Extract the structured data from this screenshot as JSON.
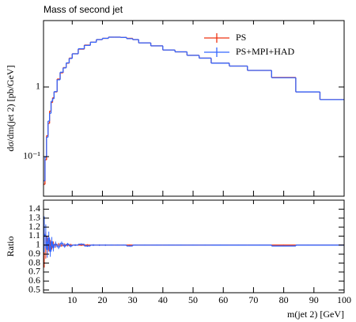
{
  "chart_data": [
    {
      "type": "histogram",
      "title": "Mass of second jet",
      "ylabel": "dσ/dm(jet 2) [pb/GeV]",
      "log_y": true,
      "legend": "upper right",
      "xlim": [
        0.5,
        100
      ],
      "xticks": [
        10,
        20,
        30,
        40,
        50,
        60,
        70,
        80,
        90,
        100
      ],
      "ylim": [
        0.027,
        9
      ],
      "yticks": [
        {
          "value": 0.1,
          "label": "10⁻¹"
        },
        1
      ],
      "bins": [
        0.5,
        1,
        1.5,
        2,
        2.5,
        3,
        3.5,
        4,
        5,
        6,
        7,
        8,
        9,
        10,
        12,
        14,
        16,
        18,
        20,
        22,
        24,
        26,
        28,
        30,
        32,
        36,
        40,
        44,
        48,
        52,
        56,
        62,
        68,
        76,
        84,
        92,
        100
      ],
      "series": [
        {
          "name": "PS",
          "color": "#ee3311",
          "values": [
            0.04,
            0.09,
            0.2,
            0.3,
            0.45,
            0.6,
            0.7,
            0.85,
            1.3,
            1.6,
            1.9,
            2.2,
            2.6,
            3.0,
            3.5,
            4.0,
            4.4,
            4.8,
            5.0,
            5.2,
            5.2,
            5.15,
            5.0,
            4.8,
            4.3,
            3.9,
            3.4,
            3.2,
            2.85,
            2.6,
            2.2,
            2.0,
            1.73,
            1.37,
            0.85,
            0.66
          ]
        },
        {
          "name": "PS+MPI+HAD",
          "color": "#3366ff",
          "values": [
            0.045,
            0.099,
            0.19,
            0.324,
            0.419,
            0.624,
            0.679,
            0.859,
            1.27,
            1.63,
            1.88,
            2.22,
            2.57,
            3.0,
            3.54,
            3.96,
            4.4,
            4.8,
            5.0,
            5.2,
            5.2,
            5.15,
            4.95,
            4.8,
            4.3,
            3.9,
            3.4,
            3.2,
            2.85,
            2.6,
            2.2,
            2.0,
            1.73,
            1.36,
            0.85,
            0.66
          ]
        }
      ]
    },
    {
      "type": "histogram",
      "ylabel": "Ratio",
      "xlabel": "m(jet 2) [GeV]",
      "xlim": [
        0.5,
        100
      ],
      "xticks": [
        10,
        20,
        30,
        40,
        50,
        60,
        70,
        80,
        90,
        100
      ],
      "ylim": [
        0.47,
        1.5
      ],
      "yticks": [
        0.5,
        0.6,
        0.7,
        0.8,
        0.9,
        1,
        1.1,
        1.2,
        1.3,
        1.4
      ],
      "bins": [
        0.5,
        1,
        1.5,
        2,
        2.5,
        3,
        3.5,
        4,
        5,
        6,
        7,
        8,
        9,
        10,
        12,
        14,
        16,
        18,
        20,
        22,
        24,
        26,
        28,
        30,
        32,
        36,
        40,
        44,
        48,
        52,
        56,
        62,
        68,
        76,
        84,
        92,
        100
      ],
      "series": [
        {
          "name": "PS",
          "color": "#ee3311",
          "values": [
            1,
            1,
            1,
            1,
            1,
            1,
            1,
            1,
            1,
            1,
            1,
            1,
            1,
            1,
            1,
            1,
            1,
            1,
            1,
            1,
            1,
            1,
            1,
            1,
            1,
            1,
            1,
            1,
            1,
            1,
            1,
            1,
            1,
            1,
            1,
            1
          ],
          "errors": [
            0.25,
            0.15,
            0.1,
            0.07,
            0.06,
            0.05,
            0.04,
            0.03,
            0.025,
            0.02,
            0.02,
            0.015,
            0.015,
            0.01,
            0.01,
            0.01,
            0.01,
            0.008,
            0.008,
            0.006,
            0.006,
            0.006,
            0.006,
            0.006,
            0.005,
            0.005,
            0.005,
            0.005,
            0.005,
            0.005,
            0.005,
            0.005,
            0.005,
            0.005,
            0.005,
            0.005
          ]
        },
        {
          "name": "PS+MPI+HAD",
          "color": "#3366ff",
          "values": [
            1.12,
            1.1,
            0.95,
            1.08,
            0.93,
            1.04,
            0.97,
            1.01,
            0.98,
            1.02,
            0.99,
            1.01,
            0.99,
            1,
            1.01,
            0.99,
            1,
            1,
            1,
            1,
            1,
            1,
            0.99,
            1,
            1,
            1,
            1,
            1,
            1,
            1,
            1,
            1,
            1,
            0.99,
            1,
            1
          ],
          "errors": [
            0.2,
            0.13,
            0.09,
            0.07,
            0.06,
            0.05,
            0.04,
            0.03,
            0.025,
            0.02,
            0.02,
            0.015,
            0.015,
            0.01,
            0.01,
            0.01,
            0.01,
            0.008,
            0.008,
            0.006,
            0.006,
            0.006,
            0.006,
            0.006,
            0.005,
            0.005,
            0.005,
            0.005,
            0.005,
            0.005,
            0.005,
            0.005,
            0.005,
            0.005,
            0.005,
            0.005
          ]
        }
      ]
    }
  ]
}
